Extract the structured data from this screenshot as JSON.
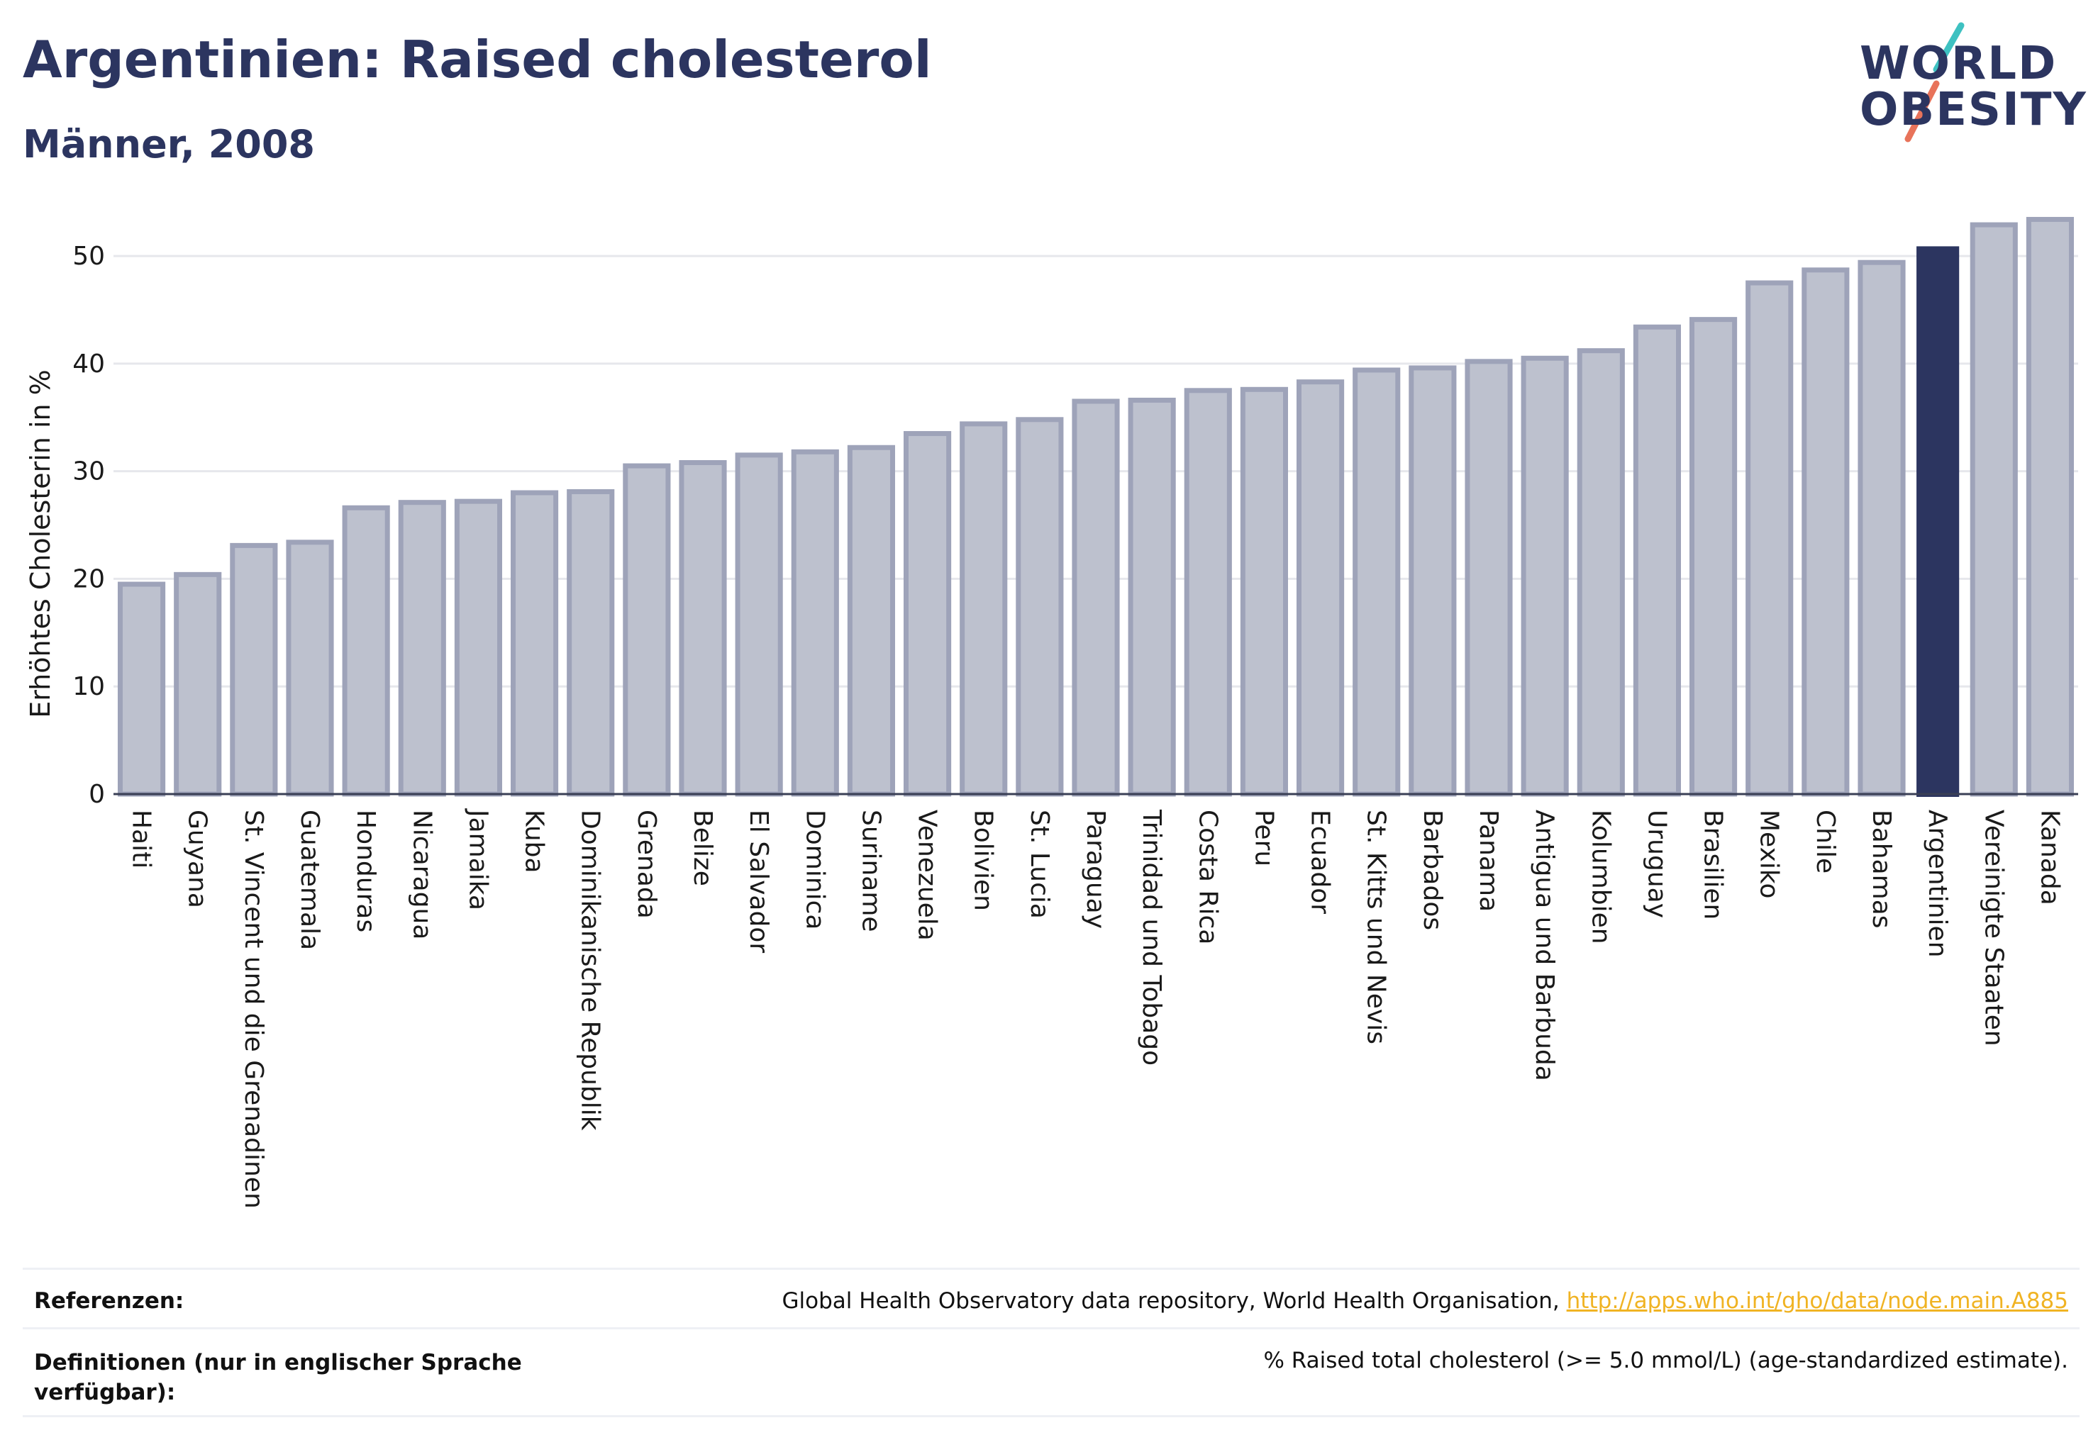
{
  "header": {
    "title": "Argentinien: Raised cholesterol",
    "subtitle": "Männer, 2008"
  },
  "logo": {
    "line1": "WORLD",
    "line2": "OBESITY",
    "accent_colors": [
      "#3ec1c1",
      "#e8735a"
    ]
  },
  "chart_data": {
    "type": "bar",
    "ylabel": "Erhöhtes Cholesterin in %",
    "xlabel": "",
    "ylim": [
      0,
      56
    ],
    "yticks": [
      0,
      10,
      20,
      30,
      40,
      50
    ],
    "grid": true,
    "highlight": "Argentinien",
    "colors": {
      "bar_fill": "#bdc1ce",
      "bar_stroke": "#9ea3b9",
      "highlight_fill": "#2c3560",
      "grid": "#e6e7ec",
      "axis_text": "#1a1a1a"
    },
    "categories": [
      "Haiti",
      "Guyana",
      "St. Vincent und die Grenadinen",
      "Guatemala",
      "Honduras",
      "Nicaragua",
      "Jamaika",
      "Kuba",
      "Dominikanische Republik",
      "Grenada",
      "Belize",
      "El Salvador",
      "Dominica",
      "Suriname",
      "Venezuela",
      "Bolivien",
      "St. Lucia",
      "Paraguay",
      "Trinidad und Tobago",
      "Costa Rica",
      "Peru",
      "Ecuador",
      "St. Kitts und Nevis",
      "Barbados",
      "Panama",
      "Antigua und Barbuda",
      "Kolumbien",
      "Uruguay",
      "Brasilien",
      "Mexiko",
      "Chile",
      "Bahamas",
      "Argentinien",
      "Vereinigte Staaten",
      "Kanada"
    ],
    "values": [
      19.5,
      20.4,
      23.1,
      23.4,
      26.6,
      27.1,
      27.2,
      28.0,
      28.1,
      30.5,
      30.8,
      31.5,
      31.8,
      32.2,
      33.5,
      34.4,
      34.8,
      36.5,
      36.6,
      37.5,
      37.6,
      38.3,
      39.4,
      39.6,
      40.2,
      40.5,
      41.2,
      43.4,
      44.1,
      47.5,
      48.7,
      49.4,
      50.9,
      52.9,
      53.4
    ]
  },
  "footer": {
    "references_label": "Referenzen:",
    "references_text": "Global Health Observatory data repository, World Health Organisation, ",
    "references_link": "http://apps.who.int/gho/data/node.main.A885",
    "definitions_label_line1": "Definitionen (nur in englischer Sprache",
    "definitions_label_line2": "verfügbar):",
    "definitions_text": "% Raised total cholesterol (>= 5.0 mmol/L) (age-standardized estimate)."
  }
}
